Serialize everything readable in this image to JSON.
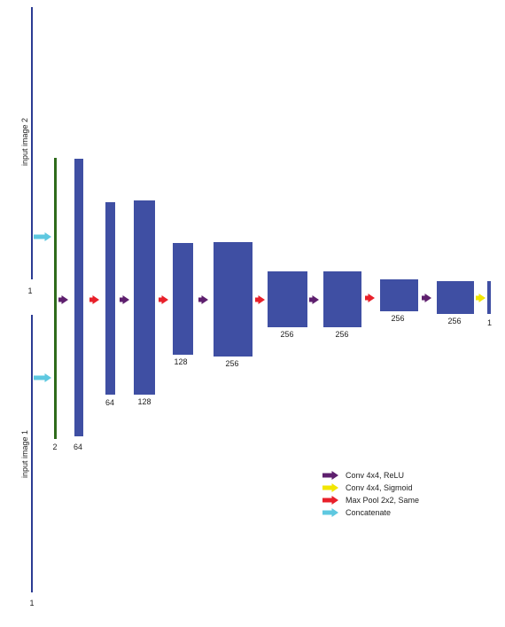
{
  "colors": {
    "layer": "#3f4fa3",
    "input_line": "#2b3b93",
    "concat_line": "#2f6b1c",
    "conv_relu": "#5e1f6e",
    "conv_sigmoid": "#f2e600",
    "max_pool": "#e8202a",
    "concatenate": "#5ec8e0"
  },
  "inputs": [
    {
      "label": "input image 2",
      "channels": "1"
    },
    {
      "label": "input image 1",
      "channels": "1"
    }
  ],
  "layers": [
    {
      "channels": "2"
    },
    {
      "channels": "64"
    },
    {
      "channels": "64"
    },
    {
      "channels": "128"
    },
    {
      "channels": "128"
    },
    {
      "channels": "256"
    },
    {
      "channels": "256"
    },
    {
      "channels": "256"
    },
    {
      "channels": "256"
    },
    {
      "channels": "256"
    },
    {
      "channels": "1"
    }
  ],
  "arrows": [
    {
      "op": "concatenate"
    },
    {
      "op": "concatenate"
    },
    {
      "op": "conv_relu"
    },
    {
      "op": "max_pool"
    },
    {
      "op": "conv_relu"
    },
    {
      "op": "max_pool"
    },
    {
      "op": "conv_relu"
    },
    {
      "op": "max_pool"
    },
    {
      "op": "conv_relu"
    },
    {
      "op": "max_pool"
    },
    {
      "op": "conv_relu"
    },
    {
      "op": "conv_sigmoid"
    }
  ],
  "legend": [
    {
      "op": "conv_relu",
      "label": "Conv 4x4, ReLU"
    },
    {
      "op": "conv_sigmoid",
      "label": "Conv 4x4, Sigmoid"
    },
    {
      "op": "max_pool",
      "label": "Max Pool 2x2, Same"
    },
    {
      "op": "concatenate",
      "label": "Concatenate"
    }
  ]
}
